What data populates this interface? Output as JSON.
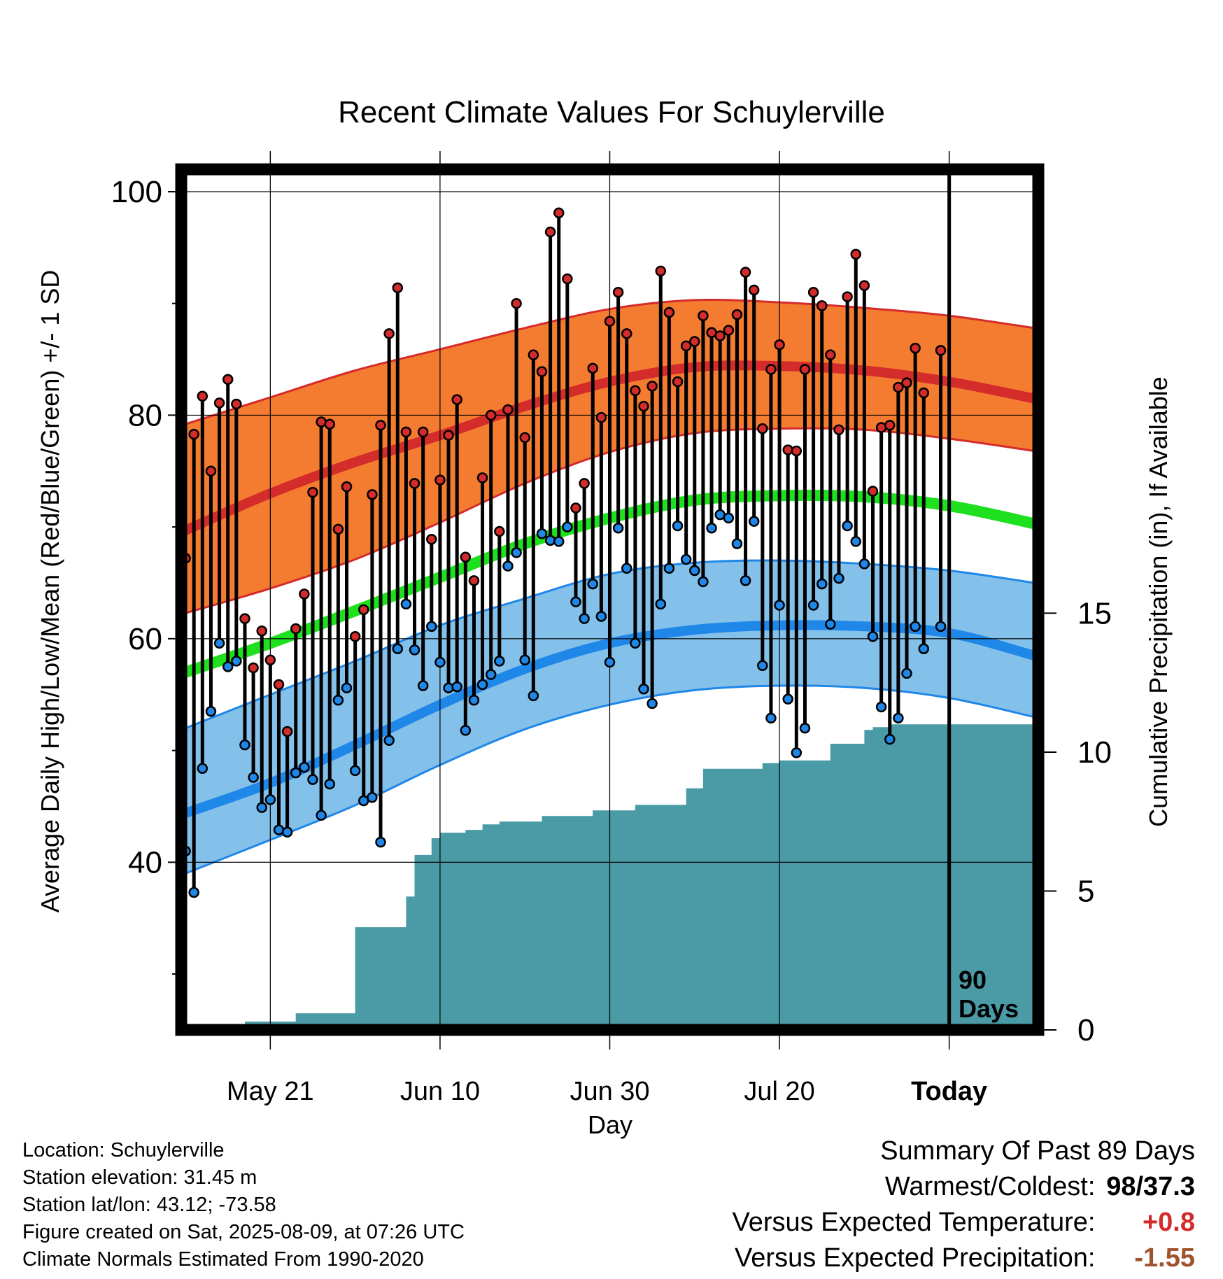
{
  "chart_data": {
    "type": "line",
    "title": "Recent Climate Values For Schuylerville",
    "xlabel": "Day",
    "ylabel": "Average Daily High/Low/Mean (Red/Blue/Green) +/- 1 SD",
    "y2label": "Cumulative Precipitation (in), If Available",
    "x_ticks": [
      "May 21",
      "Jun 10",
      "Jun 30",
      "Jul 20",
      "Today"
    ],
    "x_tick_day_index": [
      10,
      30,
      50,
      70,
      90
    ],
    "x_range_day_index": [
      -0.5,
      100.5
    ],
    "today_index": 90,
    "today_label_1": "90",
    "today_label_2": "Days",
    "ylim": [
      25,
      102
    ],
    "yticks": [
      40,
      60,
      80,
      100
    ],
    "y2lim": [
      0,
      15
    ],
    "y2ticks": [
      0,
      5,
      10,
      15
    ],
    "grid": true,
    "normals": {
      "day_index": [
        0,
        10,
        20,
        30,
        40,
        50,
        60,
        70,
        80,
        90,
        100
      ],
      "high_mean": [
        69.7,
        73.0,
        75.8,
        78.2,
        80.8,
        83.0,
        84.3,
        84.4,
        84.0,
        83.0,
        81.5
      ],
      "high_upper": [
        79.2,
        81.6,
        84.0,
        85.9,
        87.8,
        89.5,
        90.3,
        90.1,
        89.6,
        88.9,
        87.8
      ],
      "high_lower": [
        62.3,
        64.5,
        67.1,
        70.4,
        73.9,
        76.7,
        78.4,
        78.8,
        78.7,
        77.9,
        76.8
      ],
      "mean": [
        57.0,
        59.6,
        62.5,
        65.5,
        68.5,
        70.8,
        72.4,
        72.8,
        72.7,
        71.9,
        70.3
      ],
      "low_mean": [
        44.4,
        47.1,
        50.5,
        54.1,
        57.3,
        59.6,
        60.8,
        61.2,
        61.1,
        60.5,
        58.5
      ],
      "low_upper": [
        52.0,
        55.0,
        58.0,
        61.2,
        63.6,
        65.8,
        66.8,
        67.0,
        66.7,
        66.1,
        65.0
      ],
      "low_lower": [
        39.0,
        42.0,
        45.1,
        48.7,
        51.9,
        54.1,
        55.4,
        55.8,
        55.6,
        54.7,
        53.0
      ]
    },
    "series": [
      {
        "name": "Red",
        "color": "#d42b2b",
        "values": [
          67.2,
          78.3,
          81.7,
          75,
          81.1,
          83.2,
          81,
          61.8,
          57.4,
          60.7,
          58.1,
          55.9,
          51.7,
          60.9,
          64,
          73.1,
          79.4,
          79.2,
          69.8,
          73.6,
          60.2,
          62.6,
          72.9,
          79.1,
          87.3,
          91.4,
          78.5,
          73.9,
          78.5,
          68.9,
          74.2,
          78.2,
          81.4,
          67.3,
          65.2,
          74.4,
          80,
          69.6,
          80.5,
          90,
          78,
          85.4,
          83.9,
          96.4,
          98.1,
          92.2,
          71.7,
          73.9,
          84.2,
          79.8,
          88.4,
          91,
          87.3,
          82.2,
          80.8,
          82.6,
          92.9,
          89.2,
          83,
          86.2,
          86.6,
          88.9,
          87.4,
          87.1,
          87.6,
          89,
          92.8,
          91.2,
          78.8,
          84.1,
          86.3,
          76.9,
          76.8,
          84.1,
          91,
          89.8,
          85.4,
          78.7,
          90.6,
          94.4,
          91.6,
          73.2,
          78.9,
          79.1,
          82.5,
          82.9,
          86,
          82,
          null,
          85.8
        ]
      },
      {
        "name": "Blue",
        "color": "#1f87e8",
        "values": [
          41,
          37.3,
          48.4,
          53.5,
          59.6,
          57.5,
          58,
          50.5,
          47.6,
          44.9,
          45.6,
          42.9,
          42.7,
          48,
          48.5,
          47.4,
          44.2,
          47,
          54.5,
          55.6,
          48.2,
          45.5,
          45.8,
          41.8,
          50.9,
          59.1,
          63.1,
          59,
          55.8,
          61.1,
          57.9,
          55.6,
          55.7,
          51.8,
          54.5,
          55.9,
          56.8,
          58,
          66.5,
          67.7,
          58.1,
          54.9,
          69.4,
          68.8,
          68.7,
          70,
          63.3,
          61.8,
          64.9,
          62,
          57.9,
          69.9,
          66.3,
          59.6,
          55.5,
          54.2,
          63.1,
          66.3,
          70.1,
          67.1,
          66.1,
          65.1,
          69.9,
          71.1,
          70.8,
          68.5,
          65.2,
          70.5,
          57.6,
          52.9,
          63,
          54.6,
          49.8,
          52,
          63,
          64.9,
          61.3,
          65.4,
          70.1,
          68.7,
          66.7,
          60.2,
          53.9,
          51,
          52.9,
          56.9,
          61.1,
          59.1,
          null,
          61.1
        ]
      }
    ],
    "precip_cumulative": {
      "day_index": [
        0,
        6,
        7,
        10,
        13,
        19,
        20,
        24,
        26,
        27,
        29,
        30,
        33,
        35,
        37,
        42,
        48,
        53,
        59,
        61,
        62,
        68,
        70,
        76,
        77,
        80,
        81,
        83,
        100
      ],
      "values": [
        0,
        0,
        0.3,
        0.3,
        0.6,
        0.6,
        3.7,
        3.7,
        4.8,
        6.3,
        6.9,
        7.1,
        7.2,
        7.4,
        7.5,
        7.7,
        7.9,
        8.1,
        8.7,
        9.4,
        9.4,
        9.6,
        9.7,
        10.3,
        10.3,
        10.8,
        10.9,
        11,
        11
      ]
    }
  },
  "info": {
    "location": "Location: Schuylerville",
    "elevation": "Station elevation: 31.45 m",
    "latlon": "Station lat/lon: 43.12; -73.58",
    "created": "Figure created on Sat, 2025-08-09, at 07:26 UTC",
    "normals": "Climate Normals Estimated From 1990-2020"
  },
  "summary": {
    "title": "Summary Of Past 89 Days",
    "warmest_label": "Warmest/Coldest:",
    "warm": "98",
    "sep": "/",
    "cold": "37.3",
    "temp_label": "Versus Expected Temperature:",
    "temp_value": "+0.8",
    "temp_color": "#d42b2b",
    "precip_label": "Versus Expected Precipitation:",
    "precip_value": "-1.55",
    "precip_color": "#a0522d"
  },
  "colors": {
    "high_band": "#f47c30",
    "high_line": "#d42b2b",
    "mean_line": "#1fe01f",
    "low_band": "#84c1ea",
    "low_line": "#1f87e8",
    "precip": "#4a9ba6"
  }
}
